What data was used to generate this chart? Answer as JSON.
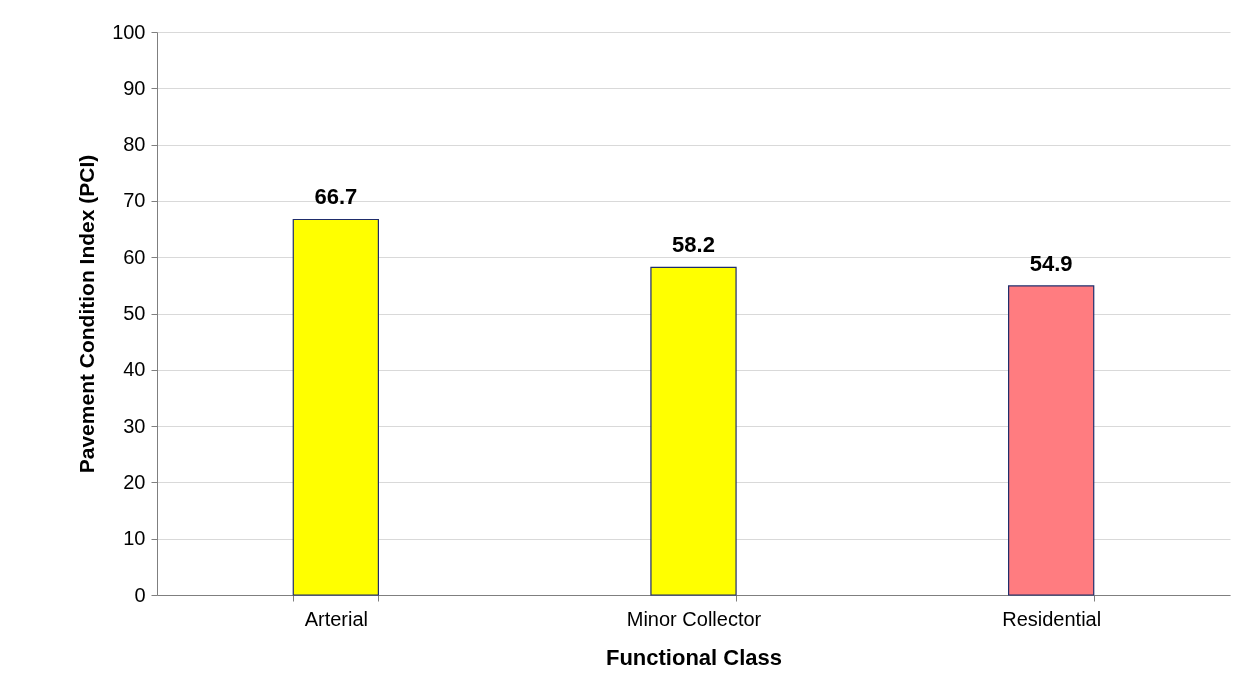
{
  "chart_data": {
    "type": "bar",
    "xlabel": "Functional Class",
    "ylabel": "Pavement Condition Index (PCI)",
    "categories": [
      "Arterial",
      "Minor Collector",
      "Residential"
    ],
    "values": [
      66.7,
      58.2,
      54.9
    ],
    "colors": [
      "#ffff00",
      "#ffff00",
      "#ff7c80"
    ],
    "ylim": [
      0,
      100
    ],
    "yticks": [
      0,
      10,
      20,
      30,
      40,
      50,
      60,
      70,
      80,
      90,
      100
    ],
    "grid": "y",
    "data_labels": true
  }
}
